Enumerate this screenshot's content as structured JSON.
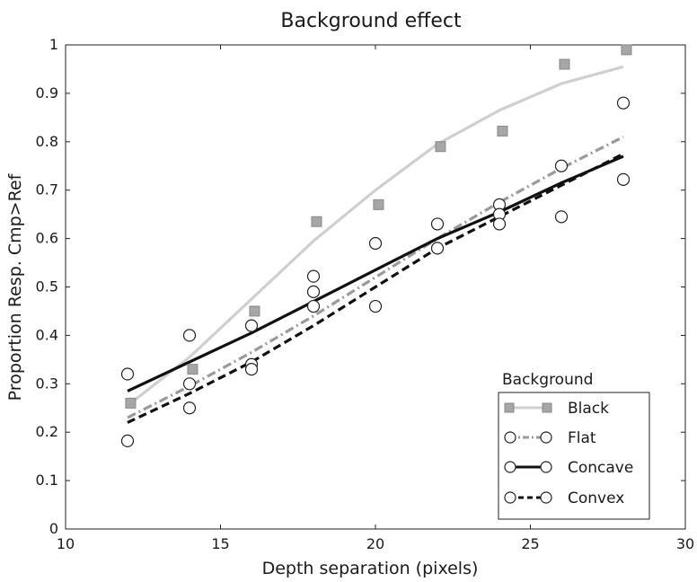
{
  "chart_data": {
    "type": "scatter",
    "title": "Background effect",
    "xlabel": "Depth separation (pixels)",
    "ylabel": "Proportion Resp. Cmp>Ref",
    "xlim": [
      10,
      30
    ],
    "ylim": [
      0,
      1
    ],
    "xticks": [
      "10",
      "15",
      "20",
      "25",
      "30"
    ],
    "yticks": [
      "0",
      "0.1",
      "0.2",
      "0.3",
      "0.4",
      "0.5",
      "0.6",
      "0.7",
      "0.8",
      "0.9",
      "1"
    ],
    "grid": false,
    "legend": {
      "title": "Background",
      "position": "bottom-right",
      "entries": [
        "Black",
        "Flat",
        "Concave",
        "Convex"
      ]
    },
    "series": [
      {
        "name": "Black",
        "color": "#a6a6a6",
        "line_color": "#cfcfcf",
        "marker": "square",
        "line_style": "solid",
        "points": [
          [
            12.1,
            0.26
          ],
          [
            14.1,
            0.33
          ],
          [
            16.1,
            0.45
          ],
          [
            18.1,
            0.635
          ],
          [
            20.1,
            0.67
          ],
          [
            22.1,
            0.79
          ],
          [
            24.1,
            0.822
          ],
          [
            26.1,
            0.96
          ],
          [
            28.1,
            0.99
          ]
        ],
        "fit": [
          [
            12,
            0.255
          ],
          [
            14,
            0.355
          ],
          [
            16,
            0.475
          ],
          [
            18,
            0.595
          ],
          [
            20,
            0.7
          ],
          [
            22,
            0.795
          ],
          [
            24,
            0.865
          ],
          [
            26,
            0.92
          ],
          [
            28,
            0.955
          ]
        ]
      },
      {
        "name": "Flat",
        "color": "#9a9a9a",
        "line_color": "#9a9a9a",
        "marker": "circle",
        "line_style": "dashdot",
        "points": [],
        "fit": [
          [
            12,
            0.23
          ],
          [
            14,
            0.295
          ],
          [
            16,
            0.365
          ],
          [
            18,
            0.44
          ],
          [
            20,
            0.52
          ],
          [
            22,
            0.6
          ],
          [
            24,
            0.675
          ],
          [
            26,
            0.745
          ],
          [
            28,
            0.81
          ]
        ]
      },
      {
        "name": "Concave",
        "color": "#111111",
        "line_color": "#111111",
        "marker": "circle",
        "line_style": "solid",
        "points": [],
        "fit": [
          [
            12,
            0.285
          ],
          [
            14,
            0.345
          ],
          [
            16,
            0.405
          ],
          [
            18,
            0.47
          ],
          [
            20,
            0.535
          ],
          [
            22,
            0.6
          ],
          [
            24,
            0.655
          ],
          [
            26,
            0.715
          ],
          [
            28,
            0.77
          ]
        ]
      },
      {
        "name": "Convex",
        "color": "#111111",
        "line_color": "#111111",
        "marker": "circle",
        "line_style": "dashed",
        "points": [],
        "fit": [
          [
            12,
            0.22
          ],
          [
            14,
            0.28
          ],
          [
            16,
            0.345
          ],
          [
            18,
            0.42
          ],
          [
            20,
            0.5
          ],
          [
            22,
            0.58
          ],
          [
            24,
            0.645
          ],
          [
            26,
            0.71
          ],
          [
            28,
            0.775
          ]
        ]
      }
    ],
    "open_circle_points": [
      [
        12,
        0.32
      ],
      [
        12,
        0.182
      ],
      [
        14,
        0.4
      ],
      [
        14,
        0.3
      ],
      [
        14,
        0.25
      ],
      [
        16,
        0.42
      ],
      [
        16,
        0.34
      ],
      [
        16,
        0.33
      ],
      [
        18,
        0.522
      ],
      [
        18,
        0.49
      ],
      [
        18,
        0.46
      ],
      [
        20,
        0.59
      ],
      [
        20,
        0.46
      ],
      [
        22,
        0.63
      ],
      [
        22,
        0.58
      ],
      [
        24,
        0.67
      ],
      [
        24,
        0.65
      ],
      [
        24,
        0.63
      ],
      [
        26,
        0.75
      ],
      [
        26,
        0.645
      ],
      [
        28,
        0.88
      ],
      [
        28,
        0.722
      ]
    ]
  }
}
